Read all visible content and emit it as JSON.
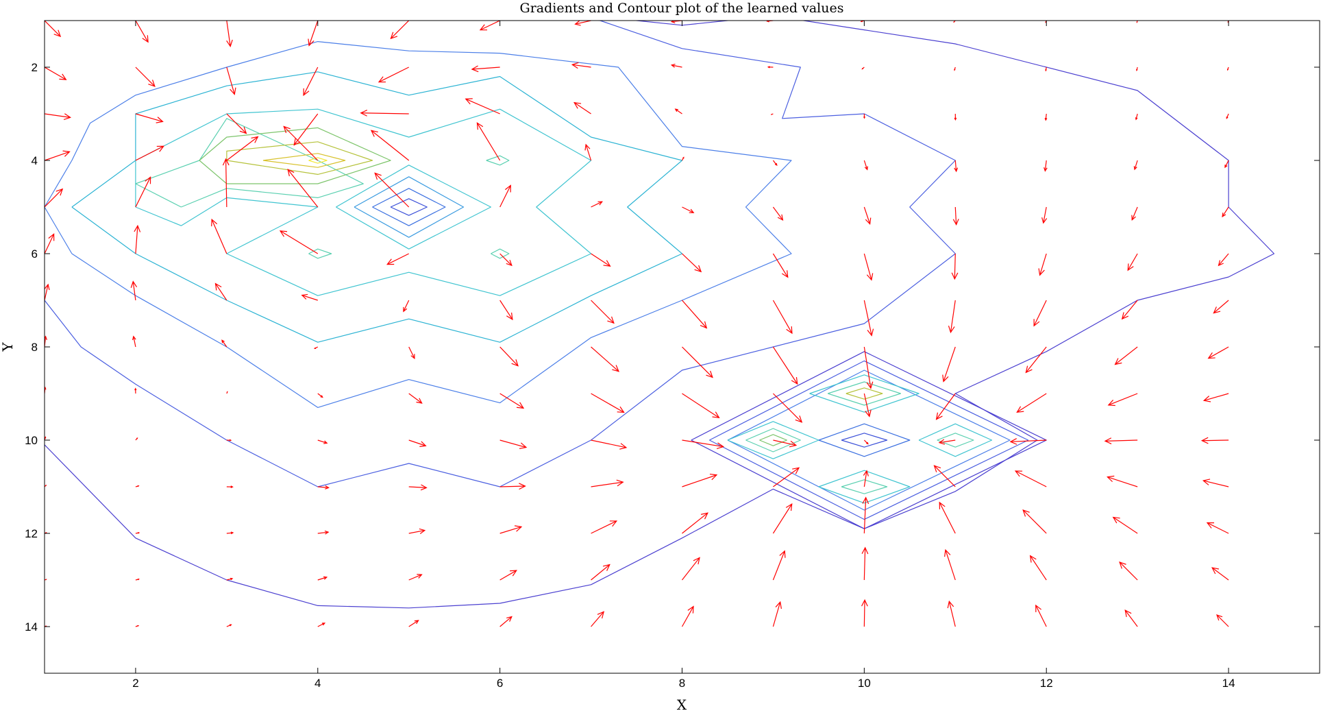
{
  "chart_data": {
    "type": "contour",
    "title": "Gradients and Contour plot of the learned values",
    "xlabel": "X",
    "ylabel": "Y",
    "xlim": [
      1,
      15
    ],
    "ylim": [
      1,
      15
    ],
    "y_reversed": true,
    "x_ticks": [
      "2",
      "4",
      "6",
      "8",
      "10",
      "12",
      "14"
    ],
    "y_ticks": [
      "2",
      "4",
      "6",
      "8",
      "10",
      "12",
      "14"
    ],
    "grid": false,
    "arrow_color": "#ff0000",
    "contours": [
      {
        "level": 1,
        "color": "#4a3fd0",
        "points": [
          [
            1,
            10.1
          ],
          [
            2,
            12.1
          ],
          [
            3,
            13
          ],
          [
            4,
            13.55
          ],
          [
            5,
            13.6
          ],
          [
            6,
            13.5
          ],
          [
            7,
            13.1
          ],
          [
            8,
            12.1
          ],
          [
            9,
            11.05
          ],
          [
            10,
            11.9
          ],
          [
            11,
            11.1
          ],
          [
            11.9,
            10
          ],
          [
            11,
            9
          ],
          [
            12,
            8.1
          ],
          [
            13,
            7
          ],
          [
            14,
            6.5
          ],
          [
            14.5,
            6
          ],
          [
            14,
            5
          ],
          [
            14,
            4
          ],
          [
            13,
            2.5
          ],
          [
            11,
            1.5
          ],
          [
            10,
            1.2
          ],
          [
            9,
            0.9
          ],
          [
            8,
            1.1
          ],
          [
            7,
            0.9
          ],
          [
            5,
            0.9
          ],
          [
            1,
            0.9
          ]
        ]
      },
      {
        "level": 2,
        "color": "#4a5ee0",
        "points": [
          [
            1,
            7
          ],
          [
            1.4,
            8
          ],
          [
            2,
            8.8
          ],
          [
            3,
            10
          ],
          [
            4,
            11
          ],
          [
            5,
            10.5
          ],
          [
            6,
            11
          ],
          [
            7,
            10
          ],
          [
            8,
            8.5
          ],
          [
            9,
            8
          ],
          [
            10,
            7.5
          ],
          [
            11,
            6
          ],
          [
            10.5,
            5
          ],
          [
            11,
            4
          ],
          [
            10,
            3
          ],
          [
            9.1,
            3.1
          ],
          [
            9.3,
            2
          ],
          [
            8,
            1.6
          ],
          [
            7.1,
            1
          ],
          [
            5,
            0.85
          ]
        ]
      },
      {
        "level": 3,
        "color": "#4a7ee8",
        "points": [
          [
            1.3,
            6
          ],
          [
            2,
            6.9
          ],
          [
            3,
            8
          ],
          [
            4,
            9.3
          ],
          [
            5,
            8.7
          ],
          [
            6,
            9.2
          ],
          [
            7,
            7.8
          ],
          [
            8,
            7
          ],
          [
            9.2,
            6
          ],
          [
            8.7,
            5
          ],
          [
            9.2,
            4
          ],
          [
            8,
            3.7
          ],
          [
            7.3,
            2
          ],
          [
            6,
            1.7
          ],
          [
            5,
            1.65
          ],
          [
            4,
            1.45
          ],
          [
            3,
            2
          ],
          [
            2,
            2.6
          ],
          [
            1.5,
            3.2
          ],
          [
            1.3,
            4
          ],
          [
            1,
            5
          ],
          [
            1.3,
            6
          ]
        ]
      },
      {
        "level": 4,
        "color": "#2bb3d3",
        "points": [
          [
            1.3,
            5
          ],
          [
            2,
            6
          ],
          [
            3,
            7
          ],
          [
            4,
            7.9
          ],
          [
            5,
            7.4
          ],
          [
            6,
            7.9
          ],
          [
            7,
            6.9
          ],
          [
            8,
            6
          ],
          [
            7.4,
            5
          ],
          [
            8,
            4
          ],
          [
            7,
            3.5
          ],
          [
            6,
            2.2
          ],
          [
            5,
            2.6
          ],
          [
            4,
            2.1
          ],
          [
            3,
            2.4
          ],
          [
            2,
            3
          ],
          [
            2,
            4
          ],
          [
            1.3,
            5
          ]
        ]
      },
      {
        "level": 5,
        "color": "#3fc4d0",
        "points": [
          [
            2,
            5
          ],
          [
            2.5,
            5.4
          ],
          [
            3,
            4.8
          ],
          [
            4,
            5
          ],
          [
            3,
            6
          ],
          [
            4,
            6.9
          ],
          [
            5,
            6.4
          ],
          [
            6,
            6.9
          ],
          [
            7,
            6
          ],
          [
            6.4,
            5
          ],
          [
            7,
            4
          ],
          [
            6,
            2.9
          ],
          [
            5,
            3.5
          ],
          [
            4,
            2.9
          ],
          [
            3,
            3
          ],
          [
            2,
            4
          ],
          [
            2,
            5
          ]
        ]
      },
      {
        "level": 6,
        "color": "#5ad0b0",
        "points": [
          [
            2.5,
            5
          ],
          [
            3,
            4.6
          ],
          [
            4,
            4.8
          ],
          [
            4.5,
            4.5
          ],
          [
            4,
            4
          ],
          [
            3,
            3.1
          ],
          [
            2.7,
            4
          ],
          [
            2,
            4.5
          ],
          [
            2.5,
            5
          ]
        ]
      },
      {
        "level": 7,
        "color": "#7cc46a",
        "points": [
          [
            2.7,
            4
          ],
          [
            3,
            4.5
          ],
          [
            4,
            4.5
          ],
          [
            4.8,
            4
          ],
          [
            4,
            3.3
          ],
          [
            3,
            3.5
          ],
          [
            2.7,
            4
          ]
        ]
      },
      {
        "level": 8,
        "color": "#b5c23a",
        "points": [
          [
            3,
            4
          ],
          [
            4,
            4.3
          ],
          [
            4.6,
            4
          ],
          [
            4,
            3.6
          ],
          [
            3,
            3.8
          ],
          [
            3,
            4
          ]
        ]
      },
      {
        "level": 9,
        "color": "#d7c12a",
        "points": [
          [
            3.4,
            4
          ],
          [
            4,
            4.15
          ],
          [
            4.3,
            4
          ],
          [
            4,
            3.85
          ],
          [
            3.4,
            4
          ]
        ]
      },
      {
        "level": 10,
        "color": "#f2e83a",
        "points": [
          [
            3.9,
            4
          ],
          [
            4,
            4.06
          ],
          [
            4.1,
            4
          ],
          [
            4,
            3.94
          ],
          [
            3.9,
            4
          ]
        ]
      },
      {
        "level": 11,
        "color": "#3fc4d0",
        "points": [
          [
            4.2,
            5
          ],
          [
            5,
            4.1
          ],
          [
            5.9,
            5
          ],
          [
            5,
            5.9
          ],
          [
            4.2,
            5
          ]
        ]
      },
      {
        "level": 12,
        "color": "#3a9be0",
        "points": [
          [
            4.4,
            5
          ],
          [
            5,
            4.35
          ],
          [
            5.6,
            5
          ],
          [
            5,
            5.65
          ],
          [
            4.4,
            5
          ]
        ]
      },
      {
        "level": 13,
        "color": "#3a6fe0",
        "points": [
          [
            4.6,
            5
          ],
          [
            5,
            4.6
          ],
          [
            5.4,
            5
          ],
          [
            5,
            5.4
          ],
          [
            4.6,
            5
          ]
        ]
      },
      {
        "level": 14,
        "color": "#3a4fd8",
        "points": [
          [
            4.8,
            5
          ],
          [
            5,
            4.82
          ],
          [
            5.2,
            5
          ],
          [
            5,
            5.18
          ],
          [
            4.8,
            5
          ]
        ]
      },
      {
        "level": 15,
        "color": "#5ad0b0",
        "points": [
          [
            5.85,
            4
          ],
          [
            6,
            3.9
          ],
          [
            6.1,
            4
          ],
          [
            6,
            4.1
          ],
          [
            5.85,
            4
          ]
        ]
      },
      {
        "level": 16,
        "color": "#5ad0b0",
        "points": [
          [
            3.9,
            6
          ],
          [
            4,
            5.9
          ],
          [
            4.15,
            6
          ],
          [
            4,
            6.1
          ],
          [
            3.9,
            6
          ]
        ]
      },
      {
        "level": 17,
        "color": "#5ad0b0",
        "points": [
          [
            5.9,
            6
          ],
          [
            6,
            5.9
          ],
          [
            6.1,
            6
          ],
          [
            6,
            6.1
          ],
          [
            5.9,
            6
          ]
        ]
      },
      {
        "level": 18,
        "color": "#4a3fd0",
        "points": [
          [
            8.1,
            10
          ],
          [
            10,
            8.1
          ],
          [
            12,
            10
          ],
          [
            10,
            11.9
          ],
          [
            8.1,
            10
          ]
        ]
      },
      {
        "level": 19,
        "color": "#4a5ee0",
        "points": [
          [
            8.3,
            10
          ],
          [
            10,
            8.3
          ],
          [
            11.8,
            10
          ],
          [
            10,
            11.7
          ],
          [
            8.3,
            10
          ]
        ]
      },
      {
        "level": 20,
        "color": "#4a7ee8",
        "points": [
          [
            8.5,
            10
          ],
          [
            10,
            8.5
          ],
          [
            11.6,
            10
          ],
          [
            10,
            11.5
          ],
          [
            8.5,
            10
          ]
        ]
      },
      {
        "level": 21,
        "color": "#3fc4d0",
        "points": [
          [
            9.4,
            9
          ],
          [
            10,
            8.6
          ],
          [
            10.6,
            9
          ],
          [
            10,
            9.4
          ],
          [
            9.4,
            9
          ]
        ]
      },
      {
        "level": 22,
        "color": "#5ad0b0",
        "points": [
          [
            9.6,
            9
          ],
          [
            10,
            8.75
          ],
          [
            10.4,
            9
          ],
          [
            10,
            9.25
          ],
          [
            9.6,
            9
          ]
        ]
      },
      {
        "level": 23,
        "color": "#b5c23a",
        "points": [
          [
            9.8,
            9
          ],
          [
            10,
            8.88
          ],
          [
            10.2,
            9
          ],
          [
            10,
            9.12
          ],
          [
            9.8,
            9
          ]
        ]
      },
      {
        "level": 24,
        "color": "#3fc4d0",
        "points": [
          [
            8.5,
            10
          ],
          [
            9,
            9.6
          ],
          [
            9.5,
            10
          ],
          [
            9,
            10.4
          ],
          [
            8.5,
            10
          ]
        ]
      },
      {
        "level": 25,
        "color": "#5ad0b0",
        "points": [
          [
            8.7,
            10
          ],
          [
            9,
            9.75
          ],
          [
            9.3,
            10
          ],
          [
            9,
            10.25
          ],
          [
            8.7,
            10
          ]
        ]
      },
      {
        "level": 26,
        "color": "#7cc46a",
        "points": [
          [
            8.85,
            10
          ],
          [
            9,
            9.88
          ],
          [
            9.15,
            10
          ],
          [
            9,
            10.12
          ],
          [
            8.85,
            10
          ]
        ]
      },
      {
        "level": 27,
        "color": "#3a6fe0",
        "points": [
          [
            9.5,
            10
          ],
          [
            10,
            9.65
          ],
          [
            10.5,
            10
          ],
          [
            10,
            10.35
          ],
          [
            9.5,
            10
          ]
        ]
      },
      {
        "level": 28,
        "color": "#3a4fd8",
        "points": [
          [
            9.75,
            10
          ],
          [
            10,
            9.85
          ],
          [
            10.25,
            10
          ],
          [
            10,
            10.15
          ],
          [
            9.75,
            10
          ]
        ]
      },
      {
        "level": 29,
        "color": "#3fc4d0",
        "points": [
          [
            10.6,
            10
          ],
          [
            11,
            9.65
          ],
          [
            11.4,
            10
          ],
          [
            11,
            10.35
          ],
          [
            10.6,
            10
          ]
        ]
      },
      {
        "level": 30,
        "color": "#5ad0b0",
        "points": [
          [
            10.8,
            10
          ],
          [
            11,
            9.85
          ],
          [
            11.2,
            10
          ],
          [
            11,
            10.15
          ],
          [
            10.8,
            10
          ]
        ]
      },
      {
        "level": 31,
        "color": "#3fc4d0",
        "points": [
          [
            9.5,
            11
          ],
          [
            10,
            10.65
          ],
          [
            10.5,
            11
          ],
          [
            10,
            11.35
          ],
          [
            9.5,
            11
          ]
        ]
      },
      {
        "level": 32,
        "color": "#5ad0b0",
        "points": [
          [
            9.75,
            11
          ],
          [
            10,
            10.85
          ],
          [
            10.25,
            11
          ],
          [
            10,
            11.15
          ],
          [
            9.75,
            11
          ]
        ]
      }
    ],
    "peaks": [
      {
        "x": 4,
        "y": 4,
        "strength": 2.2,
        "sign": 1
      },
      {
        "x": 5,
        "y": 5,
        "strength": 1.8,
        "sign": -1
      },
      {
        "x": 10,
        "y": 10,
        "strength": 0.5,
        "sign": -1
      },
      {
        "x": 10,
        "y": 9,
        "strength": 0.45,
        "sign": 1
      },
      {
        "x": 9,
        "y": 10,
        "strength": 0.45,
        "sign": 1
      },
      {
        "x": 11,
        "y": 10,
        "strength": 0.45,
        "sign": 1
      },
      {
        "x": 10,
        "y": 11,
        "strength": 0.45,
        "sign": 1
      }
    ]
  }
}
